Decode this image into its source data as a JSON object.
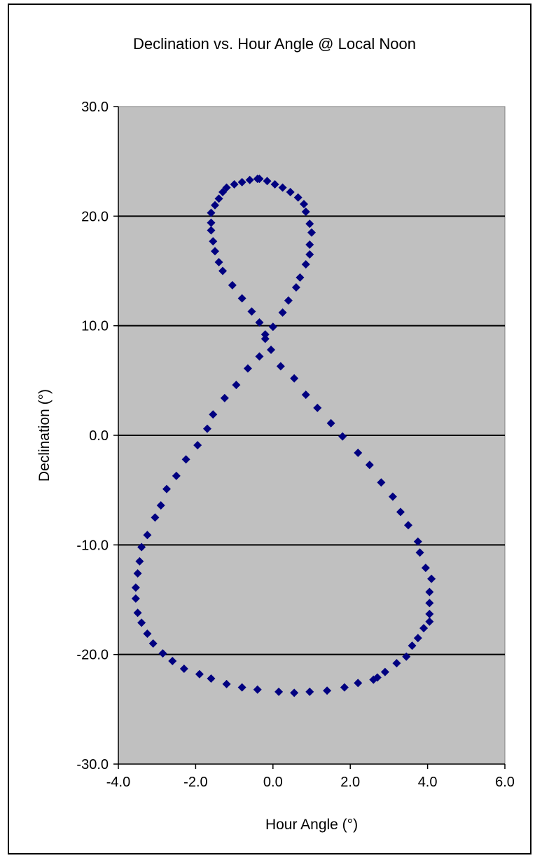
{
  "chart_data": {
    "type": "scatter",
    "title": "Declination vs. Hour Angle @ Local Noon",
    "xlabel": "Hour Angle (°)",
    "ylabel": "Declination (°)",
    "xlim": [
      -4.0,
      6.0
    ],
    "ylim": [
      -30.0,
      30.0
    ],
    "xticks": [
      "-4.0",
      "-2.0",
      "0.0",
      "2.0",
      "4.0",
      "6.0"
    ],
    "yticks": [
      "30.0",
      "20.0",
      "10.0",
      "0.0",
      "-10.0",
      "-20.0",
      "-30.0"
    ],
    "grid": "horizontal major lines",
    "legend": "none",
    "colors": {
      "plot_area": "#c0c0c0",
      "marker": "#000080",
      "grid": "#000000"
    },
    "marker": "diamond",
    "series": [
      {
        "points": [
          [
            -0.4,
            23.4
          ],
          [
            -0.6,
            23.3
          ],
          [
            -0.8,
            23.1
          ],
          [
            -1.0,
            22.9
          ],
          [
            -1.2,
            22.6
          ],
          [
            -1.3,
            22.2
          ],
          [
            -1.4,
            21.6
          ],
          [
            -1.5,
            21.0
          ],
          [
            -1.6,
            20.3
          ],
          [
            -1.6,
            19.4
          ],
          [
            -1.6,
            18.7
          ],
          [
            -1.55,
            17.7
          ],
          [
            -1.5,
            16.8
          ],
          [
            -1.4,
            15.8
          ],
          [
            -1.3,
            15.0
          ],
          [
            -1.05,
            13.7
          ],
          [
            -0.8,
            12.5
          ],
          [
            -0.55,
            11.3
          ],
          [
            -0.35,
            10.3
          ],
          [
            -0.2,
            9.2
          ],
          [
            -0.35,
            7.2
          ],
          [
            -0.65,
            6.1
          ],
          [
            -0.95,
            4.6
          ],
          [
            -1.25,
            3.4
          ],
          [
            -1.55,
            1.9
          ],
          [
            -1.7,
            0.6
          ],
          [
            -1.95,
            -0.9
          ],
          [
            -2.25,
            -2.2
          ],
          [
            -2.5,
            -3.7
          ],
          [
            -2.75,
            -4.9
          ],
          [
            -2.9,
            -6.4
          ],
          [
            -3.05,
            -7.5
          ],
          [
            -3.25,
            -9.1
          ],
          [
            -3.4,
            -10.2
          ],
          [
            -3.45,
            -11.5
          ],
          [
            -3.5,
            -12.6
          ],
          [
            -3.55,
            -13.9
          ],
          [
            -3.55,
            -14.9
          ],
          [
            -3.5,
            -16.2
          ],
          [
            -3.4,
            -17.1
          ],
          [
            -3.25,
            -18.1
          ],
          [
            -3.1,
            -19.0
          ],
          [
            -2.85,
            -19.9
          ],
          [
            -2.6,
            -20.6
          ],
          [
            -2.3,
            -21.3
          ],
          [
            -1.9,
            -21.8
          ],
          [
            -1.6,
            -22.2
          ],
          [
            -1.2,
            -22.7
          ],
          [
            -0.8,
            -23.0
          ],
          [
            -0.4,
            -23.2
          ],
          [
            0.15,
            -23.4
          ],
          [
            0.55,
            -23.5
          ],
          [
            0.95,
            -23.4
          ],
          [
            1.4,
            -23.3
          ],
          [
            1.85,
            -23.0
          ],
          [
            2.2,
            -22.6
          ],
          [
            2.6,
            -22.3
          ],
          [
            2.7,
            -22.1
          ],
          [
            2.9,
            -21.6
          ],
          [
            3.2,
            -20.8
          ],
          [
            3.45,
            -20.2
          ],
          [
            3.6,
            -19.2
          ],
          [
            3.75,
            -18.5
          ],
          [
            3.9,
            -17.6
          ],
          [
            4.05,
            -17.0
          ],
          [
            4.05,
            -16.3
          ],
          [
            4.05,
            -15.3
          ],
          [
            4.05,
            -14.3
          ],
          [
            4.1,
            -13.1
          ],
          [
            3.95,
            -12.1
          ],
          [
            3.8,
            -10.7
          ],
          [
            3.75,
            -9.7
          ],
          [
            3.5,
            -8.2
          ],
          [
            3.3,
            -7.0
          ],
          [
            3.1,
            -5.6
          ],
          [
            2.8,
            -4.3
          ],
          [
            2.5,
            -2.7
          ],
          [
            2.2,
            -1.6
          ],
          [
            1.8,
            -0.1
          ],
          [
            1.5,
            1.1
          ],
          [
            1.15,
            2.5
          ],
          [
            0.85,
            3.7
          ],
          [
            0.55,
            5.2
          ],
          [
            0.2,
            6.3
          ],
          [
            -0.05,
            7.8
          ],
          [
            -0.2,
            8.8
          ],
          [
            0.0,
            9.9
          ],
          [
            0.25,
            11.2
          ],
          [
            0.4,
            12.3
          ],
          [
            0.6,
            13.5
          ],
          [
            0.7,
            14.4
          ],
          [
            0.85,
            15.6
          ],
          [
            0.95,
            16.5
          ],
          [
            0.95,
            17.4
          ],
          [
            1.0,
            18.5
          ],
          [
            0.95,
            19.3
          ],
          [
            0.85,
            20.4
          ],
          [
            0.8,
            21.1
          ],
          [
            0.65,
            21.7
          ],
          [
            0.45,
            22.2
          ],
          [
            0.25,
            22.6
          ],
          [
            0.05,
            22.9
          ],
          [
            -0.15,
            23.2
          ],
          [
            -0.35,
            23.4
          ]
        ]
      }
    ]
  }
}
